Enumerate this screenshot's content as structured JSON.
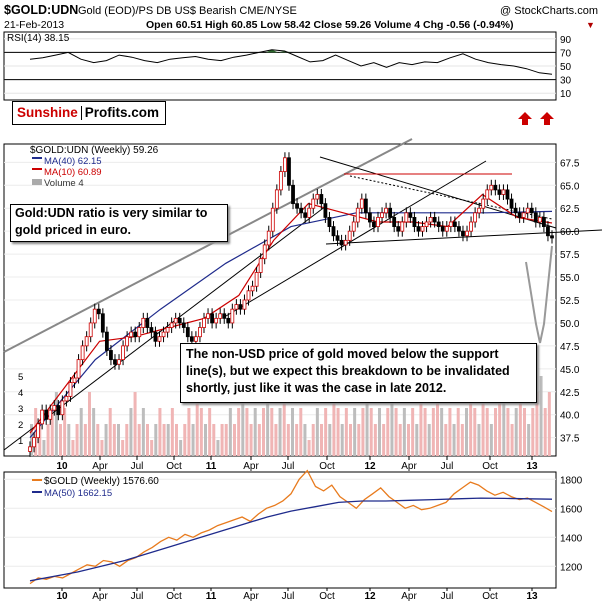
{
  "header": {
    "symbol": "$GOLD:UDN",
    "description": "Gold (EOD)/PS DB US$ Bearish CME/NYSE",
    "watermark": "@ StockCharts.com",
    "date": "21-Feb-2013",
    "stats": "Open 60.51  High 60.85  Low 58.42  Close 59.26  Volume 4  Chg -0.56 (-0.94%)",
    "chg_arrow": "▼"
  },
  "logo": {
    "part1": "Sunshine",
    "part2": "Profits.com"
  },
  "callouts": {
    "ratio": "Gold:UDN ratio is very similar to gold priced in euro.",
    "breakdown": "The non-USD price of gold moved below the support line(s), but we expect this breakdown to be invalidated shortly, just like it was the case in late 2012."
  },
  "chart_data": [
    {
      "type": "line",
      "panel": "rsi",
      "legend": [
        "RSI(14) 38.15"
      ],
      "yticks": [
        "90",
        "70",
        "50",
        "30",
        "10"
      ],
      "ylim": [
        0,
        100
      ],
      "reference_lines": [
        70,
        30
      ],
      "series": [
        {
          "name": "RSI(14)",
          "x": [
            0,
            4,
            8,
            12,
            16,
            20,
            24,
            28,
            32,
            36,
            40,
            44,
            48,
            52,
            56,
            60,
            64,
            68,
            72,
            76,
            80,
            84,
            88,
            92,
            96,
            100,
            104,
            108,
            112,
            116,
            120,
            124,
            128,
            132,
            136,
            140,
            144,
            148,
            152,
            156,
            160,
            164
          ],
          "values": [
            60,
            62,
            66,
            70,
            60,
            55,
            58,
            66,
            63,
            58,
            55,
            60,
            62,
            64,
            60,
            58,
            63,
            66,
            70,
            74,
            72,
            64,
            56,
            58,
            66,
            58,
            50,
            55,
            48,
            55,
            52,
            56,
            55,
            62,
            68,
            60,
            55,
            52,
            50,
            46,
            40,
            38
          ]
        }
      ]
    },
    {
      "type": "candlestick",
      "panel": "price",
      "legend": [
        "$GOLD:UDN (Weekly) 59.26",
        "MA(40) 62.15",
        "MA(10) 60.89",
        "Volume 4"
      ],
      "yticks": [
        "67.5",
        "65.0",
        "62.5",
        "60.0",
        "57.5",
        "55.0",
        "52.5",
        "50.0",
        "47.5",
        "45.0",
        "42.5",
        "40.0",
        "37.5"
      ],
      "volume_ticks": [
        "5",
        "4",
        "3",
        "2",
        "1"
      ],
      "xticks": [
        "10",
        "Apr",
        "Jul",
        "Oct",
        "11",
        "Apr",
        "Jul",
        "Oct",
        "12",
        "Apr",
        "Jul",
        "Oct",
        "13"
      ],
      "ylim": [
        35.5,
        69.5
      ],
      "weekly_close": [
        36.5,
        37.5,
        39,
        40.5,
        39.5,
        40.5,
        41,
        40,
        41.5,
        42,
        43.5,
        44,
        46,
        47.5,
        48.5,
        50,
        51.5,
        51,
        49,
        47,
        46,
        45.5,
        46,
        47.5,
        48.5,
        49,
        48.5,
        49.5,
        50.5,
        49.5,
        49,
        48,
        48.5,
        49,
        49.5,
        50,
        50.5,
        50,
        49.5,
        48.5,
        48,
        48.5,
        49.5,
        50.5,
        51,
        50,
        50.5,
        51,
        50.5,
        50,
        51.5,
        52,
        51.5,
        52.5,
        53.5,
        54,
        55.5,
        57,
        58.5,
        60,
        62.5,
        64.5,
        66.5,
        68,
        65,
        63,
        62.5,
        62,
        61.5,
        62.5,
        63.5,
        64,
        63,
        61.5,
        60.5,
        59.5,
        59,
        58.5,
        59,
        60,
        61,
        62.5,
        63.5,
        62,
        61,
        60.5,
        61.5,
        62,
        62.5,
        61.5,
        60.5,
        60,
        61,
        62,
        61.5,
        60.5,
        60,
        60.5,
        61,
        61.5,
        61,
        60.5,
        60,
        60.5,
        61,
        60.5,
        60,
        59.5,
        60,
        61,
        62,
        62.5,
        63.5,
        64.5,
        65,
        64.5,
        64,
        64.5,
        63.5,
        62.5,
        62,
        61.5,
        62,
        62.5,
        62,
        61,
        61.5,
        60.5,
        59.5,
        59.26
      ],
      "ma40": [
        37.5,
        46,
        51.5,
        56.5,
        60.5,
        62,
        62,
        62,
        62.15
      ],
      "ma10": [
        38,
        43,
        48,
        48.5,
        49.5,
        50.5,
        53,
        59,
        63,
        62,
        61,
        61,
        60.5,
        64,
        61.5,
        60.89
      ],
      "volume": [
        2,
        3,
        2,
        1,
        2,
        3,
        4,
        2,
        3,
        2,
        1,
        2,
        3,
        2,
        4,
        3,
        2,
        1,
        2,
        3,
        2,
        2,
        1,
        2,
        3,
        4,
        2,
        3,
        2,
        1,
        2,
        3,
        2,
        2,
        3,
        2,
        1,
        2,
        3,
        2,
        4,
        3,
        2,
        3,
        2,
        1,
        2,
        2,
        3,
        2,
        3,
        4,
        3,
        2,
        3,
        2,
        3,
        4,
        3,
        2,
        3,
        4,
        2,
        3,
        2,
        3,
        2,
        1,
        2,
        3,
        2,
        3,
        2,
        4,
        3,
        2,
        3,
        2,
        3,
        2,
        3,
        4,
        3,
        2,
        3,
        2,
        3,
        4,
        3,
        2,
        3,
        2,
        3,
        2,
        4,
        3,
        2,
        3,
        4,
        3,
        2,
        3,
        2,
        3,
        2,
        3,
        4,
        3,
        2,
        4,
        3,
        2,
        3,
        4,
        5,
        3,
        2,
        3,
        4,
        3,
        2,
        3,
        4,
        5,
        3,
        4
      ]
    },
    {
      "type": "line",
      "panel": "gold",
      "legend": [
        "$GOLD (Weekly) 1576.60",
        "MA(50) 1662.15"
      ],
      "yticks": [
        "1800",
        "1600",
        "1400",
        "1200"
      ],
      "xticks": [
        "10",
        "Apr",
        "Jul",
        "Oct",
        "11",
        "Apr",
        "Jul",
        "Oct",
        "12",
        "Apr",
        "Jul",
        "Oct",
        "13"
      ],
      "ylim": [
        1050,
        1850
      ],
      "series": [
        {
          "name": "$GOLD (Weekly)",
          "values": [
            1080,
            1120,
            1110,
            1130,
            1120,
            1150,
            1180,
            1210,
            1200,
            1240,
            1230,
            1200,
            1240,
            1260,
            1300,
            1330,
            1370,
            1400,
            1380,
            1420,
            1400,
            1430,
            1450,
            1480,
            1500,
            1520,
            1540,
            1510,
            1560,
            1600,
            1620,
            1650,
            1700,
            1800,
            1860,
            1750,
            1720,
            1760,
            1680,
            1640,
            1600,
            1660,
            1700,
            1740,
            1680,
            1640,
            1600,
            1620,
            1590,
            1600,
            1620,
            1640,
            1700,
            1740,
            1780,
            1760,
            1720,
            1690,
            1710,
            1680,
            1660,
            1670,
            1640,
            1610,
            1576.6
          ]
        },
        {
          "name": "MA(50)",
          "values": [
            1100,
            1130,
            1160,
            1200,
            1240,
            1290,
            1340,
            1390,
            1440,
            1490,
            1540,
            1580,
            1610,
            1640,
            1650,
            1650,
            1655,
            1660,
            1665,
            1670,
            1668,
            1665,
            1662.15
          ]
        }
      ]
    }
  ]
}
